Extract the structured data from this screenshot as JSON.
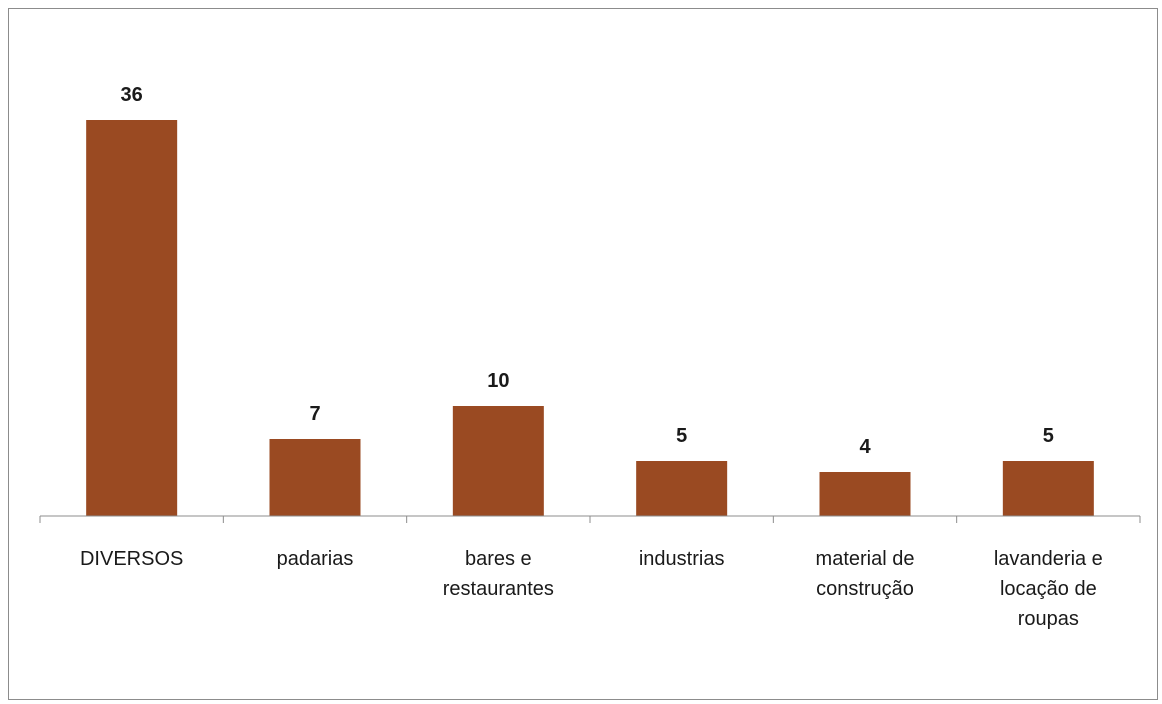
{
  "chart_data": {
    "type": "bar",
    "categories": [
      [
        "DIVERSOS"
      ],
      [
        "padarias"
      ],
      [
        "bares e",
        "restaurantes"
      ],
      [
        "industrias"
      ],
      [
        "material de",
        "construção"
      ],
      [
        "lavanderia e",
        "locação de",
        "roupas"
      ]
    ],
    "values": [
      36,
      7,
      10,
      5,
      4,
      5
    ],
    "ylim": [
      0,
      40
    ],
    "grid": false,
    "legend": "none",
    "colors": {
      "bar": "#9A4A22",
      "axis": "#8c8c8c",
      "text": "#1a1a1a"
    }
  }
}
